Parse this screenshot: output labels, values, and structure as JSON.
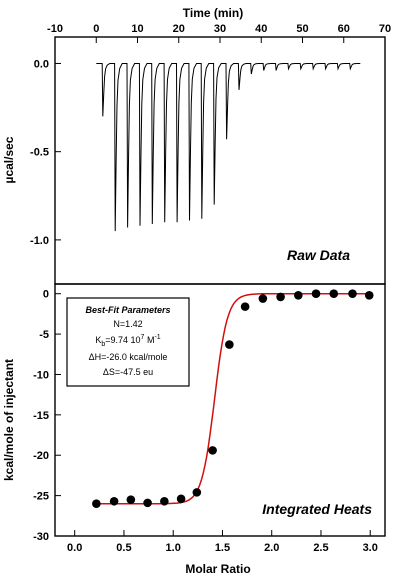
{
  "chart_data": [
    {
      "type": "line",
      "panel_label": "Raw Data",
      "xlabel": "Time (min)",
      "ylabel": "µcal/sec",
      "xlim": [
        -10,
        70
      ],
      "ylim": [
        -1.25,
        0.15
      ],
      "x_ticks": [
        -10,
        0,
        10,
        20,
        30,
        40,
        50,
        60,
        70
      ],
      "y_ticks": [
        "0.0",
        "-0.5",
        "-1.0"
      ],
      "y_tick_values": [
        0.0,
        -0.5,
        -1.0
      ],
      "baseline": 0.0,
      "injections": [
        {
          "time": 1.5,
          "peak": -0.3
        },
        {
          "time": 4.5,
          "peak": -0.95
        },
        {
          "time": 7.5,
          "peak": -0.93
        },
        {
          "time": 10.5,
          "peak": -0.92
        },
        {
          "time": 13.5,
          "peak": -0.91
        },
        {
          "time": 16.5,
          "peak": -0.9
        },
        {
          "time": 19.5,
          "peak": -0.9
        },
        {
          "time": 22.5,
          "peak": -0.89
        },
        {
          "time": 25.5,
          "peak": -0.88
        },
        {
          "time": 28.5,
          "peak": -0.8
        },
        {
          "time": 31.5,
          "peak": -0.43
        },
        {
          "time": 34.5,
          "peak": -0.15
        },
        {
          "time": 37.5,
          "peak": -0.06
        },
        {
          "time": 40.5,
          "peak": -0.04
        },
        {
          "time": 43.5,
          "peak": -0.04
        },
        {
          "time": 46.5,
          "peak": -0.03
        },
        {
          "time": 49.5,
          "peak": -0.03
        },
        {
          "time": 52.5,
          "peak": -0.03
        },
        {
          "time": 55.5,
          "peak": -0.03
        },
        {
          "time": 58.5,
          "peak": -0.03
        },
        {
          "time": 61.5,
          "peak": -0.03
        }
      ]
    },
    {
      "type": "scatter",
      "panel_label": "Integrated Heats",
      "xlabel": "Molar Ratio",
      "ylabel": "kcal/mole of injectant",
      "xlim": [
        -0.2,
        3.15
      ],
      "ylim": [
        -30,
        1.2
      ],
      "x_ticks": [
        "0.0",
        "0.5",
        "1.0",
        "1.5",
        "2.0",
        "2.5",
        "3.0"
      ],
      "x_tick_values": [
        0.0,
        0.5,
        1.0,
        1.5,
        2.0,
        2.5,
        3.0
      ],
      "y_ticks": [
        0,
        -5,
        -10,
        -15,
        -20,
        -25,
        -30
      ],
      "points": {
        "x": [
          0.22,
          0.4,
          0.57,
          0.74,
          0.91,
          1.08,
          1.24,
          1.4,
          1.57,
          1.73,
          1.91,
          2.09,
          2.27,
          2.45,
          2.63,
          2.82,
          2.99
        ],
        "y": [
          -26.0,
          -25.7,
          -25.5,
          -25.9,
          -25.7,
          -25.4,
          -24.6,
          -19.4,
          -6.3,
          -1.6,
          -0.6,
          -0.4,
          -0.2,
          0.0,
          0.0,
          0.0,
          -0.2
        ]
      },
      "fit": {
        "color": "#d01010",
        "N": 1.42,
        "dH": -26.0
      },
      "parameters_box": {
        "title": "Best-Fit Parameters",
        "n_line": "N=1.42",
        "k_prefix": "K",
        "k_sub": "b",
        "k_value": "=9.74 10",
        "k_exp": "7",
        "k_unit": " M",
        "k_unit_exp": "-1",
        "dh_line": "ΔH=-26.0 kcal/mole",
        "ds_line": "ΔS=-47.5 eu"
      }
    }
  ]
}
